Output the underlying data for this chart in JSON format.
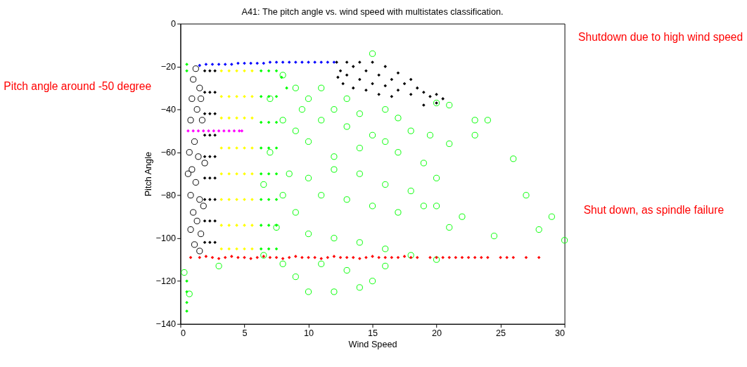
{
  "chart_data": {
    "type": "scatter",
    "title": "A41: The pitch angle vs. wind speed with multistates classification.",
    "xlabel": "Wind Speed",
    "ylabel": "Pitch Angle",
    "xlim": [
      0,
      30
    ],
    "xticks": [
      0,
      5,
      10,
      15,
      20,
      25,
      30
    ],
    "ylim": [
      -140,
      0
    ],
    "yticks": [
      -140,
      -120,
      -100,
      -80,
      -60,
      -40,
      -20,
      0
    ],
    "grid": false,
    "annotations": [
      "Shutdown due to high wind speed",
      "Pitch angle around -50 degree",
      "Shut down, as spindle failure"
    ],
    "series": [
      {
        "color": "#00ff00",
        "marker": "circle",
        "x": [
          15,
          20,
          21,
          23,
          26,
          21,
          19.5,
          18,
          17,
          16,
          14,
          12,
          10,
          9,
          8,
          11,
          13,
          15,
          17,
          16,
          14,
          12,
          10,
          9,
          8,
          7,
          8.5,
          10,
          12,
          14,
          16,
          18,
          20,
          11,
          13,
          15,
          17,
          19,
          21,
          27,
          29,
          28,
          30,
          24.5,
          9,
          7.5,
          10,
          12,
          14,
          16,
          18,
          20,
          11,
          13,
          9,
          12,
          14,
          10,
          16,
          15,
          8,
          3,
          0.3,
          0.7,
          6.5,
          22,
          20,
          24,
          11,
          13,
          9.5,
          7,
          6.5,
          8,
          19,
          23
        ],
        "values": [
          -14,
          -37,
          -38,
          -45,
          -63,
          -56,
          -52,
          -50,
          -44,
          -40,
          -42,
          -40,
          -35,
          -30,
          -24,
          -45,
          -48,
          -52,
          -60,
          -55,
          -58,
          -62,
          -55,
          -50,
          -45,
          -60,
          -70,
          -72,
          -68,
          -70,
          -75,
          -78,
          -72,
          -80,
          -82,
          -85,
          -88,
          -85,
          -95,
          -80,
          -90,
          -96,
          -101,
          -99,
          -88,
          -95,
          -98,
          -100,
          -102,
          -105,
          -108,
          -110,
          -112,
          -115,
          -118,
          -125,
          -123,
          -125,
          -113,
          -120,
          -112,
          -113,
          -116,
          -126,
          -108,
          -90,
          -85,
          -45,
          -30,
          -35,
          -40,
          -35,
          -75,
          -80,
          -65,
          -52
        ]
      },
      {
        "color": "#000000",
        "marker": "circle",
        "x": [
          1.2,
          1.0,
          1.5,
          0.9,
          1.3,
          0.8,
          1.1,
          0.7,
          1.4,
          0.9,
          1.2,
          0.8,
          1.5,
          1.0,
          1.3,
          0.8,
          1.6,
          1.1,
          1.5,
          1.9,
          1.8,
          0.6,
          1.7,
          1.6
        ],
        "values": [
          -21,
          -26,
          -30,
          -35,
          -40,
          -45,
          -55,
          -60,
          -62,
          -68,
          -74,
          -80,
          -82,
          -88,
          -92,
          -96,
          -98,
          -103,
          -106,
          -65,
          -85,
          -70,
          -45,
          -35
        ]
      },
      {
        "color": "#000000",
        "marker": "diamond",
        "x": [
          1.9,
          1.9,
          1.9,
          1.9,
          1.9,
          1.9,
          1.9,
          1.9,
          1.9,
          2.3,
          2.3,
          2.3,
          2.3,
          2.3,
          2.3,
          2.3,
          2.3,
          2.3,
          2.7,
          2.7,
          2.7,
          2.7,
          2.7,
          2.7,
          2.7,
          2.7,
          2.7,
          12.2,
          12.5,
          13,
          13,
          13.5,
          14,
          14,
          14.5,
          15,
          15,
          15.5,
          16,
          16,
          16.5,
          17,
          17,
          17.5,
          18,
          18,
          18.5,
          19,
          19.5,
          20,
          20.5,
          12.3,
          12.7,
          13.5,
          14.5,
          15.5,
          16.5,
          19,
          20
        ],
        "values": [
          -22,
          -32,
          -42,
          -52,
          -62,
          -72,
          -82,
          -92,
          -102,
          -22,
          -32,
          -42,
          -52,
          -62,
          -72,
          -82,
          -92,
          -102,
          -22,
          -32,
          -42,
          -52,
          -62,
          -72,
          -82,
          -92,
          -102,
          -18,
          -22,
          -18,
          -24,
          -20,
          -18,
          -26,
          -22,
          -18,
          -28,
          -24,
          -20,
          -29,
          -26,
          -23,
          -31,
          -28,
          -26,
          -33,
          -30,
          -32,
          -34,
          -33,
          -35,
          -25,
          -28,
          -30,
          -31,
          -33,
          -34,
          -38,
          -37
        ]
      },
      {
        "color": "#ffff00",
        "marker": "diamond",
        "x": [
          3.2,
          3.2,
          3.2,
          3.2,
          3.2,
          3.2,
          3.2,
          3.2,
          3.8,
          3.8,
          3.8,
          3.8,
          3.8,
          3.8,
          3.8,
          3.8,
          4.4,
          4.4,
          4.4,
          4.4,
          4.4,
          4.4,
          4.4,
          4.4,
          5.0,
          5.0,
          5.0,
          5.0,
          5.0,
          5.0,
          5.0,
          5.0,
          5.6,
          5.6,
          5.6,
          5.6,
          5.6,
          5.6,
          5.6,
          5.6
        ],
        "values": [
          -22,
          -34,
          -44,
          -58,
          -70,
          -82,
          -94,
          -105,
          -22,
          -34,
          -44,
          -58,
          -70,
          -82,
          -94,
          -105,
          -22,
          -34,
          -44,
          -58,
          -70,
          -82,
          -94,
          -105,
          -22,
          -34,
          -44,
          -58,
          -70,
          -82,
          -94,
          -105,
          -22,
          -34,
          -44,
          -58,
          -70,
          -82,
          -94,
          -105
        ]
      },
      {
        "color": "#00ff00",
        "marker": "diamond",
        "x": [
          6.3,
          6.3,
          6.3,
          6.3,
          6.3,
          6.3,
          6.3,
          6.3,
          6.9,
          6.9,
          6.9,
          6.9,
          6.9,
          6.9,
          6.9,
          6.9,
          7.5,
          7.5,
          7.5,
          7.5,
          7.5,
          7.5,
          7.5,
          7.5,
          0.5,
          0.5,
          0.5,
          0.5,
          0.5,
          0.5,
          7.9,
          8.3
        ],
        "values": [
          -22,
          -34,
          -46,
          -58,
          -70,
          -82,
          -94,
          -105,
          -22,
          -34,
          -46,
          -58,
          -70,
          -82,
          -94,
          -105,
          -22,
          -34,
          -46,
          -58,
          -70,
          -82,
          -94,
          -105,
          -19,
          -22,
          -120,
          -125,
          -130,
          -134,
          -25,
          -30
        ]
      },
      {
        "color": "#0000ff",
        "marker": "diamond",
        "x": [
          1.5,
          2,
          2.5,
          3,
          3.5,
          4,
          4.5,
          5,
          5.5,
          6,
          6.5,
          7,
          7.5,
          8,
          8.5,
          9,
          9.5,
          10,
          10.5,
          11,
          11.5,
          12
        ],
        "values": [
          -19.5,
          -19,
          -19,
          -19,
          -19,
          -19,
          -18.5,
          -18.5,
          -18.5,
          -18.5,
          -18.5,
          -18,
          -18,
          -18,
          -18,
          -18,
          -18,
          -18,
          -18,
          -18,
          -18,
          -18
        ]
      },
      {
        "color": "#ff00ff",
        "marker": "diamond",
        "x": [
          0.6,
          1,
          1.4,
          1.8,
          2.2,
          2.6,
          3,
          3.4,
          3.8,
          4.2,
          4.6,
          4.8
        ],
        "values": [
          -50,
          -50,
          -50,
          -50,
          -50,
          -50,
          -50,
          -50,
          -50,
          -50,
          -50,
          -50
        ]
      },
      {
        "color": "#ff0000",
        "marker": "diamond",
        "x": [
          0.8,
          1.5,
          2,
          2.5,
          3,
          3.5,
          4,
          4.5,
          5,
          5.5,
          6,
          6.5,
          7,
          7.5,
          8,
          8.5,
          9,
          9.5,
          10,
          10.5,
          11,
          11.5,
          12,
          12.5,
          13,
          13.5,
          14,
          14.5,
          15,
          15.5,
          16,
          16.5,
          17,
          17.5,
          18,
          18.5,
          19.5,
          20,
          20.5,
          21,
          21.5,
          22,
          22.5,
          23,
          23.5,
          24,
          25,
          25.5,
          26,
          27,
          28
        ],
        "values": [
          -109,
          -109,
          -108.5,
          -109,
          -109.5,
          -109,
          -108.5,
          -109,
          -109,
          -109.5,
          -109,
          -108.5,
          -109,
          -109,
          -109.5,
          -109,
          -108.5,
          -109,
          -109,
          -109,
          -109.5,
          -109,
          -108.5,
          -109,
          -109,
          -109,
          -109.5,
          -109,
          -108.5,
          -109,
          -109,
          -109,
          -109,
          -108.5,
          -109,
          -109,
          -109,
          -109,
          -109,
          -109,
          -109,
          -109,
          -109,
          -109,
          -109,
          -109,
          -109,
          -109,
          -109,
          -109,
          -109
        ]
      }
    ]
  }
}
